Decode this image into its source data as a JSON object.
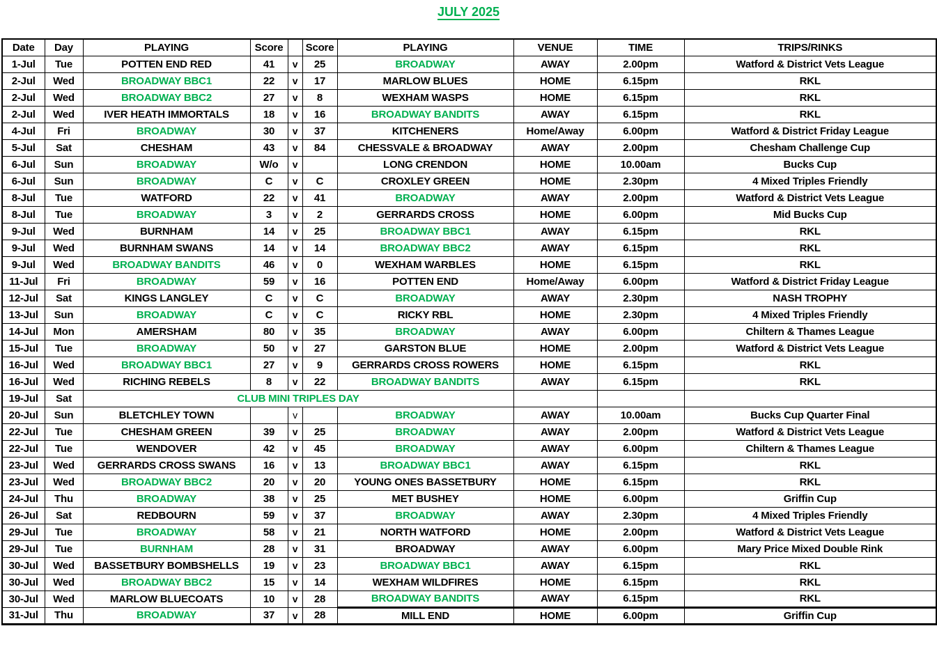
{
  "title": "JULY 2025",
  "colors": {
    "accent_green": "#00B050",
    "text_black": "#000000",
    "border_black": "#000000",
    "background": "#FFFFFF"
  },
  "table": {
    "headers": [
      "Date",
      "Day",
      "PLAYING",
      "Score",
      "",
      "Score",
      "PLAYING",
      "VENUE",
      "TIME",
      "TRIPS/RINKS"
    ],
    "rows": [
      {
        "date": "1-Jul",
        "day": "Tue",
        "home": "POTTEN END RED",
        "home_green": false,
        "score_home": "41",
        "vs": "v",
        "score_away": "25",
        "away": "BROADWAY",
        "away_green": true,
        "venue": "AWAY",
        "time": "2.00pm",
        "trips": "Watford & District Vets League"
      },
      {
        "date": "2-Jul",
        "day": "Wed",
        "home": "BROADWAY BBC1",
        "home_green": true,
        "score_home": "22",
        "vs": "v",
        "score_away": "17",
        "away": "MARLOW BLUES",
        "away_green": false,
        "venue": "HOME",
        "time": "6.15pm",
        "trips": "RKL"
      },
      {
        "date": "2-Jul",
        "day": "Wed",
        "home": "BROADWAY BBC2",
        "home_green": true,
        "score_home": "27",
        "vs": "v",
        "score_away": "8",
        "away": "WEXHAM WASPS",
        "away_green": false,
        "venue": "HOME",
        "time": "6.15pm",
        "trips": "RKL"
      },
      {
        "date": "2-Jul",
        "day": "Wed",
        "home": "IVER HEATH IMMORTALS",
        "home_green": false,
        "score_home": "18",
        "vs": "v",
        "score_away": "16",
        "away": "BROADWAY BANDITS",
        "away_green": true,
        "venue": "AWAY",
        "time": "6.15pm",
        "trips": "RKL"
      },
      {
        "date": "4-Jul",
        "day": "Fri",
        "home": "BROADWAY",
        "home_green": true,
        "score_home": "30",
        "vs": "v",
        "score_away": "37",
        "away": "KITCHENERS",
        "away_green": false,
        "venue": "Home/Away",
        "time": "6.00pm",
        "trips": "Watford & District Friday League"
      },
      {
        "date": "5-Jul",
        "day": "Sat",
        "home": "CHESHAM",
        "home_green": false,
        "score_home": "43",
        "vs": "v",
        "score_away": "84",
        "away": "CHESSVALE & BROADWAY",
        "away_green": false,
        "venue": "AWAY",
        "time": "2.00pm",
        "trips": "Chesham Challenge Cup"
      },
      {
        "date": "6-Jul",
        "day": "Sun",
        "home": "BROADWAY",
        "home_green": true,
        "score_home": "W/o",
        "vs": "v",
        "score_away": "",
        "away": "LONG CRENDON",
        "away_green": false,
        "venue": "HOME",
        "time": "10.00am",
        "trips": "Bucks Cup"
      },
      {
        "date": "6-Jul",
        "day": "Sun",
        "home": "BROADWAY",
        "home_green": true,
        "score_home": "C",
        "vs": "v",
        "score_away": "C",
        "away": "CROXLEY GREEN",
        "away_green": false,
        "venue": "HOME",
        "time": "2.30pm",
        "trips": "4 Mixed Triples Friendly"
      },
      {
        "date": "8-Jul",
        "day": "Tue",
        "home": "WATFORD",
        "home_green": false,
        "score_home": "22",
        "vs": "v",
        "score_away": "41",
        "away": "BROADWAY",
        "away_green": true,
        "venue": "AWAY",
        "time": "2.00pm",
        "trips": "Watford & District Vets League"
      },
      {
        "date": "8-Jul",
        "day": "Tue",
        "home": "BROADWAY",
        "home_green": true,
        "score_home": "3",
        "vs": "v",
        "score_away": "2",
        "away": "GERRARDS CROSS",
        "away_green": false,
        "venue": "HOME",
        "time": "6.00pm",
        "trips": "Mid Bucks Cup"
      },
      {
        "date": "9-Jul",
        "day": "Wed",
        "home": "BURNHAM",
        "home_green": false,
        "score_home": "14",
        "vs": "v",
        "score_away": "25",
        "away": "BROADWAY BBC1",
        "away_green": true,
        "venue": "AWAY",
        "time": "6.15pm",
        "trips": "RKL"
      },
      {
        "date": "9-Jul",
        "day": "Wed",
        "home": "BURNHAM SWANS",
        "home_green": false,
        "score_home": "14",
        "vs": "v",
        "score_away": "14",
        "away": "BROADWAY BBC2",
        "away_green": true,
        "venue": "AWAY",
        "time": "6.15pm",
        "trips": "RKL"
      },
      {
        "date": "9-Jul",
        "day": "Wed",
        "home": "BROADWAY BANDITS",
        "home_green": true,
        "score_home": "46",
        "vs": "v",
        "score_away": "0",
        "away": "WEXHAM WARBLES",
        "away_green": false,
        "venue": "HOME",
        "time": "6.15pm",
        "trips": "RKL"
      },
      {
        "date": "11-Jul",
        "day": "Fri",
        "home": "BROADWAY",
        "home_green": true,
        "score_home": "59",
        "vs": "v",
        "score_away": "16",
        "away": "POTTEN END",
        "away_green": false,
        "venue": "Home/Away",
        "time": "6.00pm",
        "trips": "Watford & District Friday League"
      },
      {
        "date": "12-Jul",
        "day": "Sat",
        "home": "KINGS LANGLEY",
        "home_green": false,
        "score_home": "C",
        "vs": "v",
        "score_away": "C",
        "away": "BROADWAY",
        "away_green": true,
        "venue": "AWAY",
        "time": "2.30pm",
        "trips": "NASH TROPHY"
      },
      {
        "date": "13-Jul",
        "day": "Sun",
        "home": "BROADWAY",
        "home_green": true,
        "score_home": "C",
        "vs": "v",
        "score_away": "C",
        "away": "RICKY RBL",
        "away_green": false,
        "venue": "HOME",
        "time": "2.30pm",
        "trips": "4 Mixed Triples Friendly"
      },
      {
        "date": "14-Jul",
        "day": "Mon",
        "home": "AMERSHAM",
        "home_green": false,
        "score_home": "80",
        "vs": "v",
        "score_away": "35",
        "away": "BROADWAY",
        "away_green": true,
        "venue": "AWAY",
        "time": "6.00pm",
        "trips": "Chiltern & Thames League"
      },
      {
        "date": "15-Jul",
        "day": "Tue",
        "home": "BROADWAY",
        "home_green": true,
        "score_home": "50",
        "vs": "v",
        "score_away": "27",
        "away": "GARSTON BLUE",
        "away_green": false,
        "venue": "HOME",
        "time": "2.00pm",
        "trips": "Watford & District Vets League"
      },
      {
        "date": "16-Jul",
        "day": "Wed",
        "home": "BROADWAY BBC1",
        "home_green": true,
        "score_home": "27",
        "vs": "v",
        "score_away": "9",
        "away": "GERRARDS CROSS ROWERS",
        "away_green": false,
        "venue": "HOME",
        "time": "6.15pm",
        "trips": "RKL"
      },
      {
        "date": "16-Jul",
        "day": "Wed",
        "home": "RICHING REBELS",
        "home_green": false,
        "score_home": "8",
        "vs": "v",
        "score_away": "22",
        "away": "BROADWAY BANDITS",
        "away_green": true,
        "venue": "AWAY",
        "time": "6.15pm",
        "trips": "RKL"
      },
      {
        "date": "19-Jul",
        "day": "Sat",
        "event": "CLUB MINI TRIPLES DAY",
        "venue": "",
        "time": "",
        "trips": ""
      },
      {
        "date": "20-Jul",
        "day": "Sun",
        "home": "BLETCHLEY TOWN",
        "home_green": false,
        "score_home": "",
        "vs": "v",
        "vs_light": true,
        "score_away": "",
        "away": "BROADWAY",
        "away_green": true,
        "venue": "AWAY",
        "time": "10.00am",
        "trips": "Bucks Cup Quarter Final"
      },
      {
        "date": "22-Jul",
        "day": "Tue",
        "home": "CHESHAM GREEN",
        "home_green": false,
        "score_home": "39",
        "vs": "v",
        "score_away": "25",
        "away": "BROADWAY",
        "away_green": true,
        "venue": "AWAY",
        "time": "2.00pm",
        "trips": "Watford & District Vets League"
      },
      {
        "date": "22-Jul",
        "day": "Tue",
        "home": "WENDOVER",
        "home_green": false,
        "score_home": "42",
        "vs": "v",
        "score_away": "45",
        "away": "BROADWAY",
        "away_green": true,
        "venue": "AWAY",
        "time": "6.00pm",
        "trips": "Chiltern & Thames League"
      },
      {
        "date": "23-Jul",
        "day": "Wed",
        "home": "GERRARDS CROSS SWANS",
        "home_green": false,
        "score_home": "16",
        "vs": "v",
        "score_away": "13",
        "away": "BROADWAY BBC1",
        "away_green": true,
        "venue": "AWAY",
        "time": "6.15pm",
        "trips": "RKL"
      },
      {
        "date": "23-Jul",
        "day": "Wed",
        "home": "BROADWAY BBC2",
        "home_green": true,
        "score_home": "20",
        "vs": "v",
        "score_away": "20",
        "away": "YOUNG ONES BASSETBURY",
        "away_green": false,
        "venue": "HOME",
        "time": "6.15pm",
        "trips": "RKL"
      },
      {
        "date": "24-Jul",
        "day": "Thu",
        "home": "BROADWAY",
        "home_green": true,
        "score_home": "38",
        "vs": "v",
        "score_away": "25",
        "away": "MET BUSHEY",
        "away_green": false,
        "venue": "HOME",
        "time": "6.00pm",
        "trips": "Griffin Cup"
      },
      {
        "date": "26-Jul",
        "day": "Sat",
        "home": "REDBOURN",
        "home_green": false,
        "score_home": "59",
        "vs": "v",
        "score_away": "37",
        "away": "BROADWAY",
        "away_green": true,
        "venue": "AWAY",
        "time": "2.30pm",
        "trips": "4 Mixed Triples Friendly"
      },
      {
        "date": "29-Jul",
        "day": "Tue",
        "home": "BROADWAY",
        "home_green": true,
        "score_home": "58",
        "vs": "v",
        "score_away": "21",
        "away": "NORTH WATFORD",
        "away_green": false,
        "venue": "HOME",
        "time": "2.00pm",
        "trips": "Watford & District Vets League"
      },
      {
        "date": "29-Jul",
        "day": "Tue",
        "home": "BURNHAM",
        "home_green": true,
        "score_home": "28",
        "vs": "v",
        "score_away": "31",
        "away": "BROADWAY",
        "away_green": false,
        "venue": "AWAY",
        "time": "6.00pm",
        "trips": "Mary Price Mixed Double Rink"
      },
      {
        "date": "30-Jul",
        "day": "Wed",
        "home": "BASSETBURY BOMBSHELLS",
        "home_green": false,
        "score_home": "19",
        "vs": "v",
        "score_away": "23",
        "away": "BROADWAY BBC1",
        "away_green": true,
        "venue": "AWAY",
        "time": "6.15pm",
        "trips": "RKL"
      },
      {
        "date": "30-Jul",
        "day": "Wed",
        "home": "BROADWAY BBC2",
        "home_green": true,
        "score_home": "15",
        "vs": "v",
        "score_away": "14",
        "away": "WEXHAM WILDFIRES",
        "away_green": false,
        "venue": "HOME",
        "time": "6.15pm",
        "trips": "RKL"
      },
      {
        "date": "30-Jul",
        "day": "Wed",
        "home": "MARLOW BLUECOATS",
        "home_green": false,
        "score_home": "10",
        "vs": "v",
        "score_away": "28",
        "away": "BROADWAY BANDITS",
        "away_green": true,
        "venue": "AWAY",
        "time": "6.15pm",
        "trips": "RKL"
      },
      {
        "date": "31-Jul",
        "day": "Thu",
        "home": "BROADWAY",
        "home_green": true,
        "score_home": "37",
        "vs": "v",
        "score_away": "28",
        "away": "MILL END",
        "away_green": false,
        "venue": "HOME",
        "time": "6.00pm",
        "trips": "Griffin Cup"
      }
    ]
  }
}
